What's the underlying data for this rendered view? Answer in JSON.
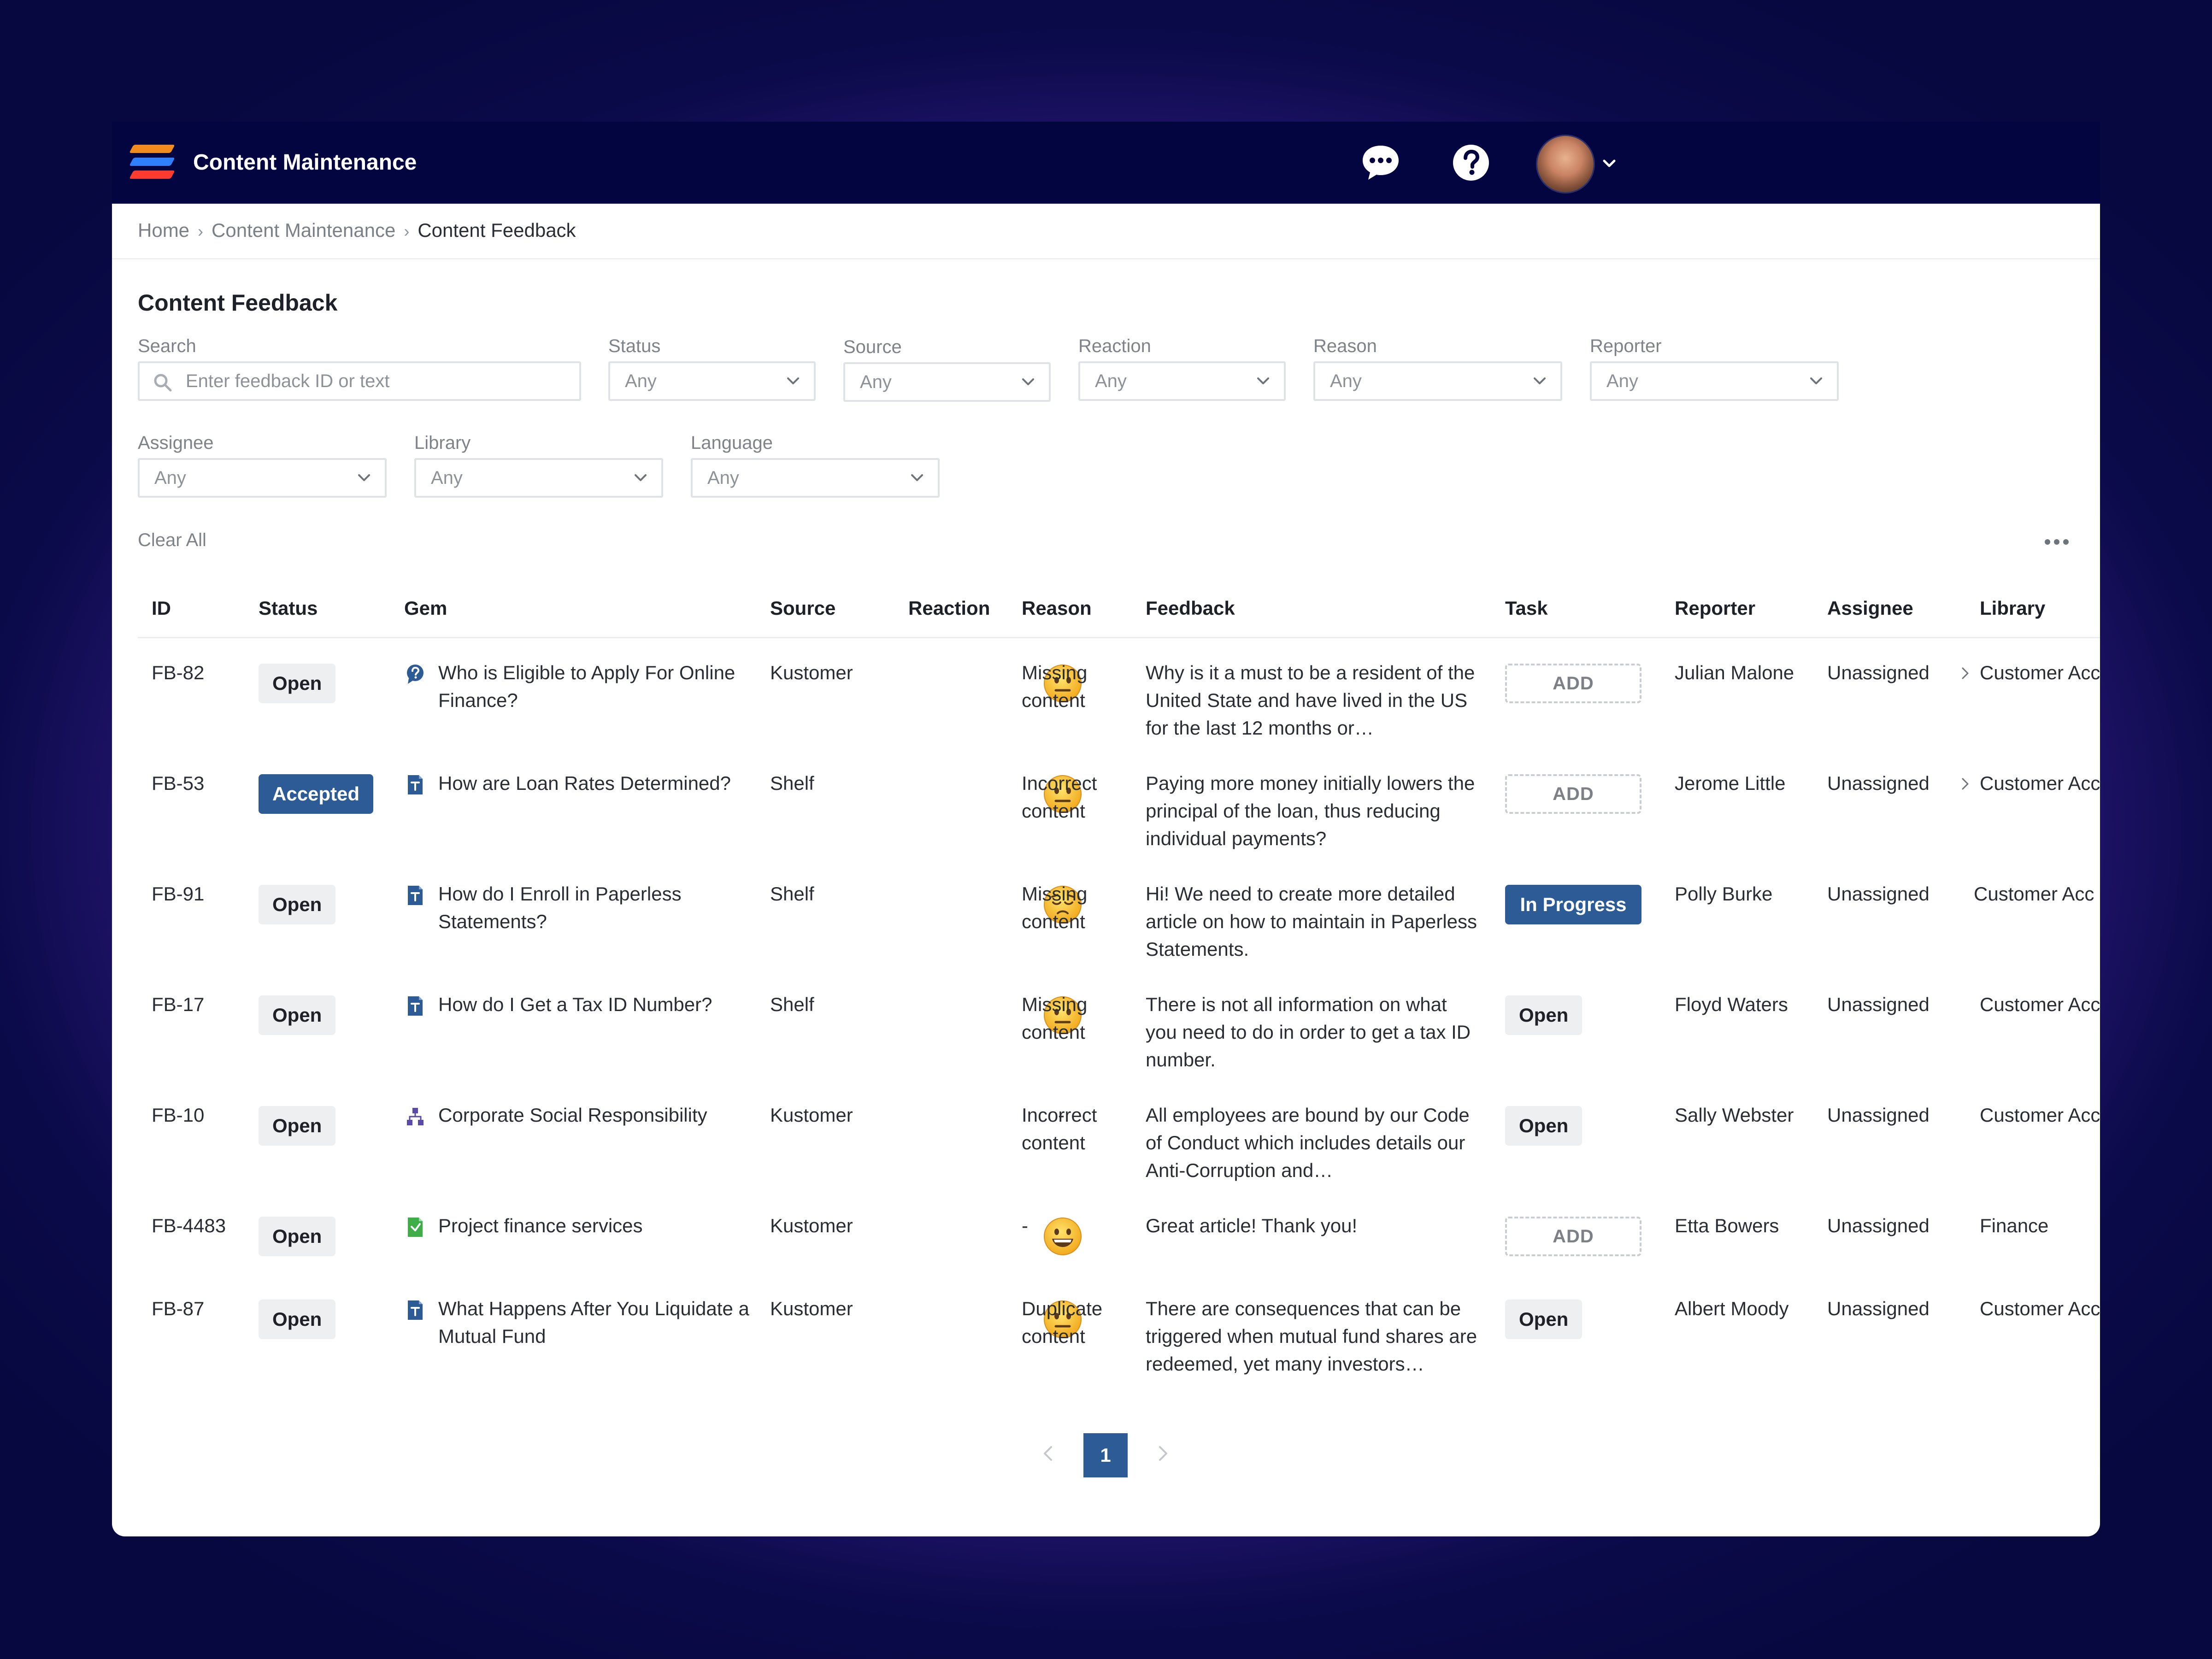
{
  "app": {
    "title": "Content Maintenance"
  },
  "breadcrumb": [
    "Home",
    "Content Maintenance",
    "Content Feedback"
  ],
  "page": {
    "title": "Content Feedback"
  },
  "filters": {
    "search": {
      "label": "Search",
      "placeholder": "Enter feedback ID or text"
    },
    "status": {
      "label": "Status",
      "value": "Any"
    },
    "source": {
      "label": "Source",
      "value": "Any"
    },
    "reaction": {
      "label": "Reaction",
      "value": "Any"
    },
    "reason": {
      "label": "Reason",
      "value": "Any"
    },
    "reporter": {
      "label": "Reporter",
      "value": "Any"
    },
    "assignee": {
      "label": "Assignee",
      "value": "Any"
    },
    "library": {
      "label": "Library",
      "value": "Any"
    },
    "language": {
      "label": "Language",
      "value": "Any"
    },
    "clear_all": "Clear All"
  },
  "table": {
    "columns": [
      "ID",
      "Status",
      "Gem",
      "Source",
      "Reaction",
      "Reason",
      "Feedback",
      "Task",
      "Reporter",
      "Assignee",
      "Library"
    ],
    "rows": [
      {
        "id": "FB-82",
        "status": "Open",
        "status_style": "open",
        "gem_icon": "question-icon",
        "gem": "Who is Eligible to Apply For Online Finance?",
        "source": "Kustomer",
        "reaction": "neutral-face-emoji",
        "reason": "Missing content",
        "feedback": "Why is it a must to be a resident of the United State and have lived in the US for the last 12 months or…",
        "task": "ADD",
        "task_style": "add",
        "reporter": "Julian Malone",
        "assignee": "Unassigned",
        "library": "Customer Acc",
        "expandable": true
      },
      {
        "id": "FB-53",
        "status": "Accepted",
        "status_style": "accepted",
        "gem_icon": "article-icon",
        "gem": "How are Loan Rates Determined?",
        "source": "Shelf",
        "reaction": "neutral-face-emoji",
        "reason": "Incorrect content",
        "feedback": "Paying more money initially lowers the principal of the loan, thus reducing individual payments?",
        "task": "ADD",
        "task_style": "add",
        "reporter": "Jerome Little",
        "assignee": "Unassigned",
        "library": "Customer Acc",
        "expandable": true
      },
      {
        "id": "FB-91",
        "status": "Open",
        "status_style": "open",
        "gem_icon": "article-icon",
        "gem": "How do I Enroll in Paperless Statements?",
        "source": "Shelf",
        "reaction": "pensive-face-emoji",
        "reason": "Missing content",
        "feedback": "Hi! We need to create more detailed article on how to maintain  in Paperless Statements.",
        "task": "In Progress",
        "task_style": "progress",
        "reporter": "Polly Burke",
        "assignee": "Unassigned",
        "library": "Customer Acc",
        "expandable": false
      },
      {
        "id": "FB-17",
        "status": "Open",
        "status_style": "open",
        "gem_icon": "article-icon",
        "gem": "How do I Get a Tax ID Number?",
        "source": "Shelf",
        "reaction": "neutral-face-emoji",
        "reason": "Missing content",
        "feedback": "There is not all information on what you need to do in order to get a tax ID number.",
        "task": "Open",
        "task_style": "open",
        "reporter": "Floyd Waters",
        "assignee": "Unassigned",
        "library": "Customer Acc",
        "expandable": false
      },
      {
        "id": "FB-10",
        "status": "Open",
        "status_style": "open",
        "gem_icon": "hierarchy-icon",
        "gem": "Corporate Social Responsibility",
        "source": "Kustomer",
        "reaction": "-",
        "reason": "Incorrect content",
        "feedback": "All employees are bound by our Code of Conduct which includes details our Anti-Corruption and…",
        "task": "Open",
        "task_style": "open",
        "reporter": "Sally Webster",
        "assignee": "Unassigned",
        "library": "Customer Acc",
        "expandable": false
      },
      {
        "id": "FB-4483",
        "status": "Open",
        "status_style": "open",
        "gem_icon": "spreadsheet-icon",
        "gem": "Project finance services",
        "source": "Kustomer",
        "reaction": "grinning-face-emoji",
        "reason": "-",
        "feedback": "Great article! Thank you!",
        "task": "ADD",
        "task_style": "add",
        "reporter": "Etta Bowers",
        "assignee": "Unassigned",
        "library": "Finance",
        "expandable": false
      },
      {
        "id": "FB-87",
        "status": "Open",
        "status_style": "open",
        "gem_icon": "article-icon",
        "gem": "What Happens After You Liquidate a Mutual Fund",
        "source": "Kustomer",
        "reaction": "neutral-face-emoji",
        "reason": "Duplicate content",
        "feedback": "There are consequences that can be triggered when mutual fund shares are redeemed, yet many investors…",
        "task": "Open",
        "task_style": "open",
        "reporter": "Albert Moody",
        "assignee": "Unassigned",
        "library": "Customer Acc",
        "expandable": false
      }
    ]
  },
  "pagination": {
    "current": "1"
  },
  "colors": {
    "nav_bg": "#02053f",
    "accent": "#2d5b95",
    "badge_gray": "#eeeff1"
  }
}
